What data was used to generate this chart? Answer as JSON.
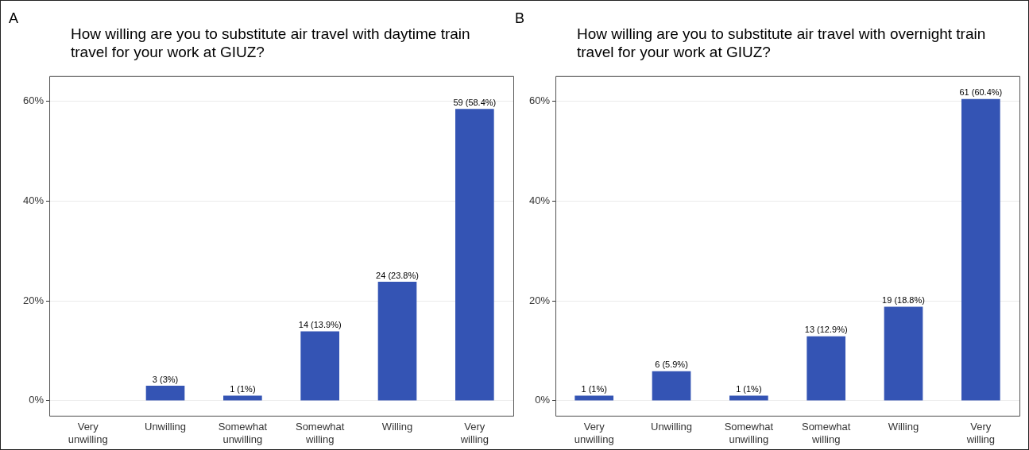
{
  "chart_data": [
    {
      "type": "bar",
      "title": "How willing are you to substitute air travel with daytime train travel for your work at GIUZ?",
      "annotations": [
        "A"
      ],
      "categories": [
        "Very unwilling",
        "Unwilling",
        "Somewhat unwilling",
        "Somewhat willing",
        "Willing",
        "Very willing"
      ],
      "values": [
        0,
        3,
        1,
        13.9,
        23.8,
        58.4
      ],
      "value_labels": [
        null,
        "3 (3%)",
        "1 (1%)",
        "14 (13.9%)",
        "24 (23.8%)",
        "59 (58.4%)"
      ],
      "color": "#3454b4",
      "ylim": [
        -3,
        65
      ],
      "yticks": [
        {
          "value": 0,
          "label": "0%"
        },
        {
          "value": 20,
          "label": "20%"
        },
        {
          "value": 40,
          "label": "40%"
        },
        {
          "value": 60,
          "label": "60%"
        }
      ],
      "grid": "y",
      "legend": false
    },
    {
      "type": "bar",
      "title": "How willing are you to substitute air travel with overnight train travel for your work at GIUZ?",
      "annotations": [
        "B"
      ],
      "categories": [
        "Very unwilling",
        "Unwilling",
        "Somewhat unwilling",
        "Somewhat willing",
        "Willing",
        "Very willing"
      ],
      "values": [
        1,
        5.9,
        1,
        12.9,
        18.8,
        60.4
      ],
      "value_labels": [
        "1 (1%)",
        "6 (5.9%)",
        "1 (1%)",
        "13 (12.9%)",
        "19 (18.8%)",
        "61 (60.4%)"
      ],
      "color": "#3454b4",
      "ylim": [
        -3,
        65
      ],
      "yticks": [
        {
          "value": 0,
          "label": "0%"
        },
        {
          "value": 20,
          "label": "20%"
        },
        {
          "value": 40,
          "label": "40%"
        },
        {
          "value": 60,
          "label": "60%"
        }
      ],
      "grid": "y",
      "legend": false
    }
  ]
}
